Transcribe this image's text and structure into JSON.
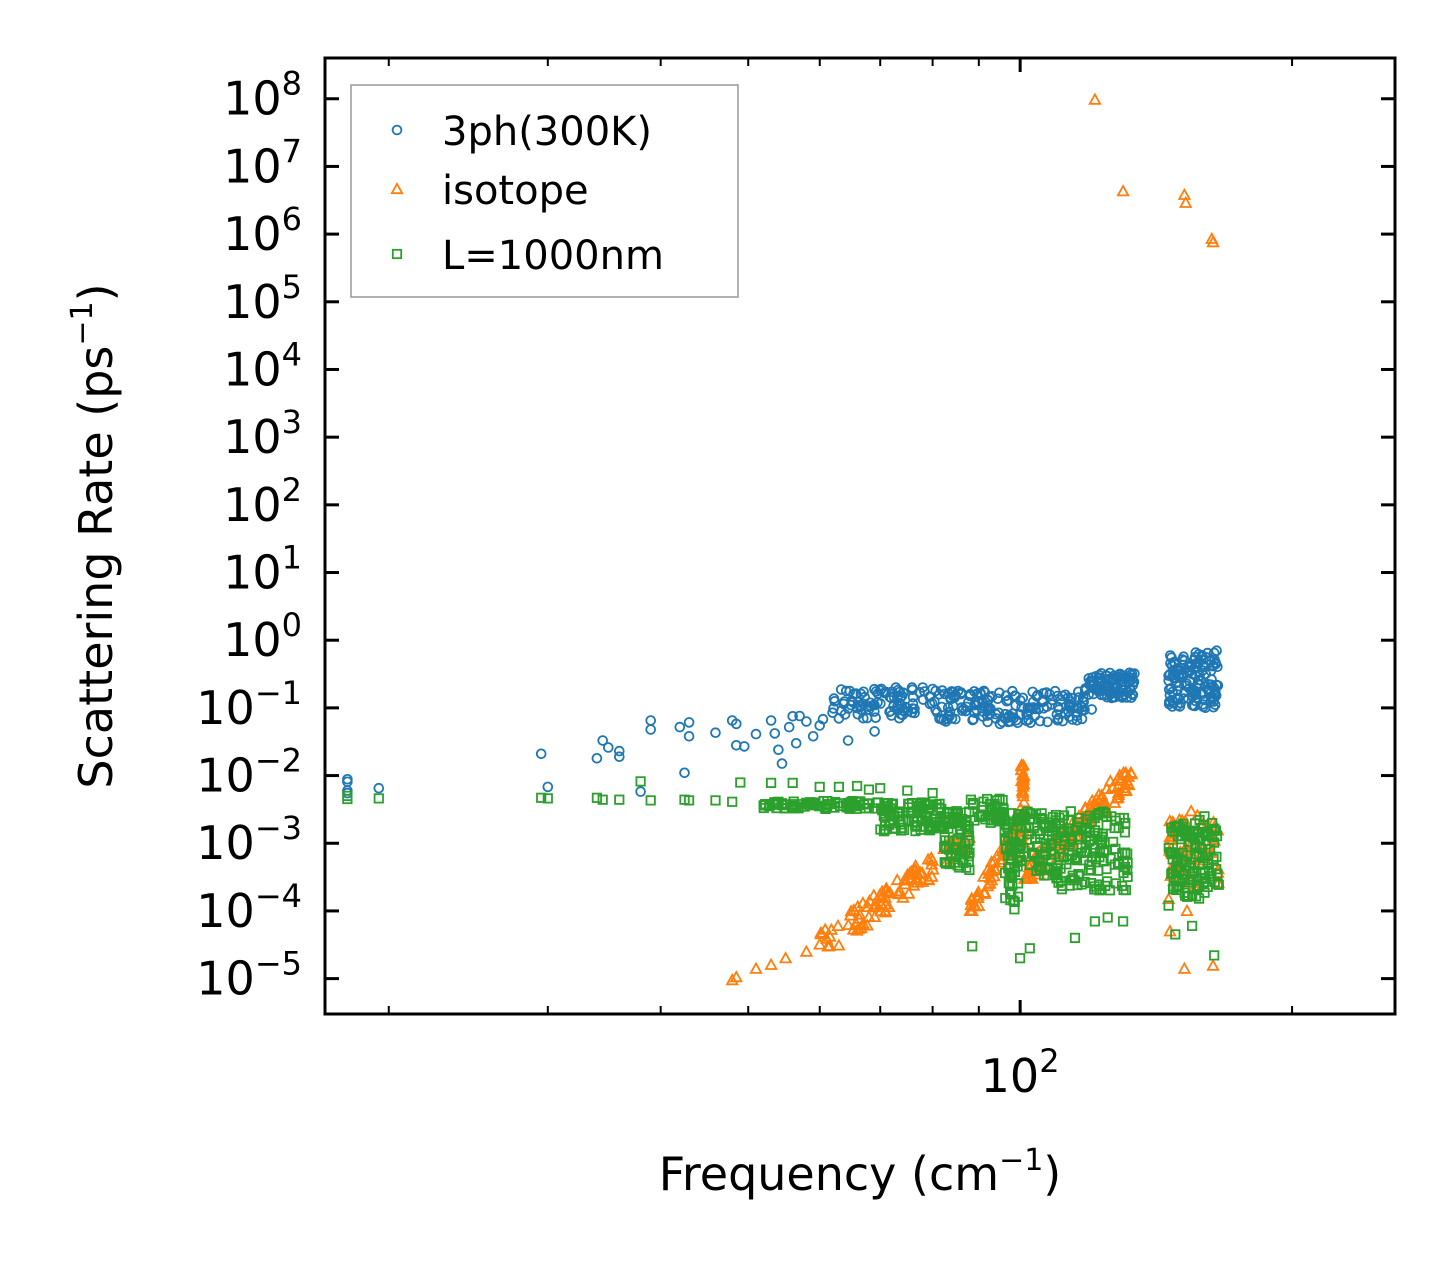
{
  "chart_data": {
    "type": "scatter",
    "xscale": "log",
    "yscale": "log",
    "xlabel": "Frequency (cm",
    "xlabel_exponent": "−1",
    "xlabel_suffix": ")",
    "ylabel": "Scattering Rate (ps",
    "ylabel_exponent": "−1",
    "ylabel_suffix": ")",
    "xlim": [
      17,
      260
    ],
    "ylim": [
      3e-06,
      400000000
    ],
    "x_ticks": [
      {
        "value": 100,
        "base": "10",
        "exp": "2"
      }
    ],
    "y_ticks": [
      {
        "value": 100000000,
        "base": "10",
        "exp": "8"
      },
      {
        "value": 10000000,
        "base": "10",
        "exp": "7"
      },
      {
        "value": 1000000,
        "base": "10",
        "exp": "6"
      },
      {
        "value": 100000,
        "base": "10",
        "exp": "5"
      },
      {
        "value": 10000,
        "base": "10",
        "exp": "4"
      },
      {
        "value": 1000,
        "base": "10",
        "exp": "3"
      },
      {
        "value": 100,
        "base": "10",
        "exp": "2"
      },
      {
        "value": 10,
        "base": "10",
        "exp": "1"
      },
      {
        "value": 1,
        "base": "10",
        "exp": "0"
      },
      {
        "value": 0.1,
        "base": "10",
        "exp": "−1"
      },
      {
        "value": 0.01,
        "base": "10",
        "exp": "−2"
      },
      {
        "value": 0.001,
        "base": "10",
        "exp": "−3"
      },
      {
        "value": 0.0001,
        "base": "10",
        "exp": "−4"
      },
      {
        "value": 1e-05,
        "base": "10",
        "exp": "−5"
      }
    ],
    "legend": {
      "position": "top-left"
    },
    "series": [
      {
        "name": "3ph(300K)",
        "marker": "circle",
        "color": "#1f77b4",
        "points": [
          [
            18.0,
            0.0088
          ],
          [
            18.0,
            0.0081
          ],
          [
            18.0,
            0.006
          ],
          [
            18.0,
            0.0055
          ],
          [
            19.5,
            0.0065
          ],
          [
            29.5,
            0.021
          ],
          [
            30.0,
            0.0068
          ],
          [
            34.0,
            0.018
          ],
          [
            34.5,
            0.033
          ],
          [
            35.0,
            0.026
          ],
          [
            36.0,
            0.023
          ],
          [
            36.0,
            0.019
          ],
          [
            38.0,
            0.0058
          ],
          [
            39.0,
            0.065
          ],
          [
            39.0,
            0.048
          ],
          [
            42.0,
            0.052
          ],
          [
            42.5,
            0.011
          ],
          [
            43.0,
            0.061
          ],
          [
            43.0,
            0.038
          ],
          [
            46.0,
            0.043
          ],
          [
            48.0,
            0.065
          ],
          [
            48.5,
            0.058
          ],
          [
            48.5,
            0.028
          ],
          [
            49.5,
            0.027
          ],
          [
            51.0,
            0.041
          ],
          [
            53.0,
            0.065
          ],
          [
            53.5,
            0.042
          ],
          [
            54.0,
            0.024
          ],
          [
            54.5,
            0.015
          ],
          [
            55.5,
            0.052
          ],
          [
            56.0,
            0.075
          ],
          [
            56.5,
            0.03
          ],
          [
            57.0,
            0.076
          ],
          [
            58.0,
            0.063
          ],
          [
            59.0,
            0.038
          ],
          [
            60.0,
            0.055
          ],
          [
            60.5,
            0.068
          ],
          [
            62.0,
            0.085
          ],
          [
            63.0,
            0.07
          ],
          [
            64.0,
            0.08
          ],
          [
            64.5,
            0.033
          ],
          [
            65.0,
            0.11
          ],
          [
            66.5,
            0.11
          ],
          [
            67.0,
            0.115
          ],
          [
            68.0,
            0.095
          ],
          [
            69.0,
            0.045
          ],
          [
            70.0,
            0.18
          ],
          [
            72.0,
            0.14
          ],
          [
            74.0,
            0.15
          ],
          [
            76.0,
            0.185
          ],
          [
            78.0,
            0.2
          ],
          [
            80.0,
            0.19
          ],
          [
            82.0,
            0.18
          ],
          [
            84.0,
            0.175
          ],
          [
            86.0,
            0.16
          ],
          [
            88.0,
            0.15
          ],
          [
            90.0,
            0.12
          ],
          [
            92.0,
            0.09
          ],
          [
            94.0,
            0.07
          ],
          [
            95.0,
            0.058
          ],
          [
            97.0,
            0.062
          ],
          [
            100.0,
            0.08
          ],
          [
            103.0,
            0.1
          ],
          [
            106.0,
            0.13
          ],
          [
            110.0,
            0.15
          ],
          [
            114.0,
            0.14
          ],
          [
            118.0,
            0.18
          ],
          [
            120.0,
            0.095
          ],
          [
            122.0,
            0.2
          ],
          [
            126.0,
            0.24
          ],
          [
            130.0,
            0.3
          ],
          [
            133.0,
            0.32
          ],
          [
            146.0,
            0.3
          ],
          [
            148.0,
            0.12
          ],
          [
            150.0,
            0.21
          ],
          [
            152.0,
            0.5
          ],
          [
            154.0,
            0.25
          ],
          [
            156.0,
            0.18
          ],
          [
            158.0,
            0.3
          ],
          [
            160.0,
            0.4
          ],
          [
            162.0,
            0.5
          ],
          [
            164.0,
            0.65
          ],
          [
            165.0,
            0.7
          ]
        ],
        "bands": [
          {
            "x": [
              62,
              80
            ],
            "y": [
              0.07,
              0.2
            ],
            "count": 80
          },
          {
            "x": [
              80,
              96
            ],
            "y": [
              0.06,
              0.18
            ],
            "count": 70
          },
          {
            "x": [
              96,
              118
            ],
            "y": [
              0.06,
              0.18
            ],
            "count": 80
          },
          {
            "x": [
              118,
              134
            ],
            "y": [
              0.14,
              0.33
            ],
            "count": 90
          },
          {
            "x": [
              146,
              166
            ],
            "y": [
              0.1,
              0.7
            ],
            "count": 120
          }
        ]
      },
      {
        "name": "isotope",
        "marker": "triangle",
        "color": "#ff7f0e",
        "points": [
          [
            48.0,
            9.5e-06
          ],
          [
            48.5,
            1.05e-05
          ],
          [
            51.0,
            1.4e-05
          ],
          [
            53.0,
            1.6e-05
          ],
          [
            55.0,
            2e-05
          ],
          [
            58.0,
            2.5e-05
          ],
          [
            60.0,
            3.2e-05
          ],
          [
            121.0,
            97000000
          ],
          [
            130.0,
            4300000
          ],
          [
            152.0,
            3800000
          ],
          [
            152.5,
            2900000
          ],
          [
            163.0,
            850000
          ],
          [
            163.5,
            760000
          ],
          [
            152.0,
            1.4e-05
          ],
          [
            146.0,
            0.00015
          ],
          [
            146.5,
            5e-05
          ],
          [
            163.5,
            1.55e-05
          ],
          [
            153.0,
            0.0001
          ]
        ],
        "bands": [
          {
            "x": [
              60,
              88
            ],
            "y": [
              3e-05,
              0.0012
            ],
            "rise": true,
            "count": 110
          },
          {
            "x": [
              88,
              100
            ],
            "y": [
              0.0001,
              0.002
            ],
            "rise": true,
            "count": 60
          },
          {
            "x": [
              100,
              101
            ],
            "y": [
              0.0005,
              0.02
            ],
            "count": 40
          },
          {
            "x": [
              101,
              133
            ],
            "y": [
              0.0003,
              0.011
            ],
            "rise": true,
            "count": 120
          },
          {
            "x": [
              146,
              166
            ],
            "y": [
              0.0002,
              0.003
            ],
            "count": 60
          }
        ]
      },
      {
        "name": "L=1000nm",
        "marker": "square",
        "color": "#2ca02c",
        "points": [
          [
            18.0,
            0.0045
          ],
          [
            18.0,
            0.005
          ],
          [
            19.5,
            0.0046
          ],
          [
            29.5,
            0.0047
          ],
          [
            30.0,
            0.0046
          ],
          [
            34.0,
            0.0047
          ],
          [
            34.5,
            0.0044
          ],
          [
            36.0,
            0.0044
          ],
          [
            38.0,
            0.0082
          ],
          [
            39.0,
            0.0043
          ],
          [
            42.5,
            0.0044
          ],
          [
            43.0,
            0.0043
          ],
          [
            46.0,
            0.0043
          ],
          [
            48.0,
            0.0041
          ],
          [
            49.0,
            0.0079
          ],
          [
            53.0,
            0.0078
          ],
          [
            54.0,
            0.0041
          ],
          [
            56.0,
            0.0078
          ],
          [
            60.0,
            0.0068
          ],
          [
            63.0,
            0.0068
          ],
          [
            66.0,
            0.007
          ],
          [
            68.0,
            0.0062
          ],
          [
            70.0,
            0.0065
          ],
          [
            75.0,
            0.006
          ],
          [
            80.0,
            0.0055
          ],
          [
            88.5,
            3e-05
          ],
          [
            100.0,
            2e-05
          ],
          [
            102.5,
            2.8e-05
          ],
          [
            115.0,
            4e-05
          ],
          [
            121.0,
            7e-05
          ],
          [
            125.0,
            8e-05
          ],
          [
            130.0,
            7e-05
          ],
          [
            146.0,
            0.00012
          ],
          [
            148.5,
            4.5e-05
          ],
          [
            155.0,
            6e-05
          ],
          [
            160.0,
            0.0025
          ],
          [
            164.0,
            2.2e-05
          ],
          [
            158.0,
            0.0022
          ]
        ],
        "bands": [
          {
            "x": [
              52,
              70
            ],
            "y": [
              0.0032,
              0.0042
            ],
            "count": 80
          },
          {
            "x": [
              70,
              82
            ],
            "y": [
              0.0015,
              0.004
            ],
            "count": 90
          },
          {
            "x": [
              82,
              88
            ],
            "y": [
              0.0004,
              0.003
            ],
            "count": 70
          },
          {
            "x": [
              88,
              96
            ],
            "y": [
              0.002,
              0.005
            ],
            "count": 40
          },
          {
            "x": [
              96,
              100
            ],
            "y": [
              0.0001,
              0.003
            ],
            "count": 60
          },
          {
            "x": [
              100,
              110
            ],
            "y": [
              0.0003,
              0.003
            ],
            "count": 80
          },
          {
            "x": [
              110,
              132
            ],
            "y": [
              0.0002,
              0.003
            ],
            "count": 140
          },
          {
            "x": [
              146,
              166
            ],
            "y": [
              0.00015,
              0.002
            ],
            "count": 130
          }
        ]
      }
    ]
  }
}
